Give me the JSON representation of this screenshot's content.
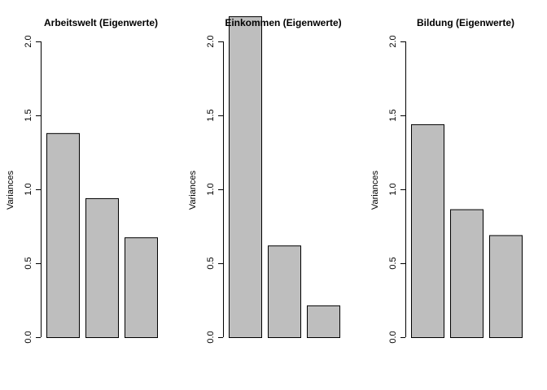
{
  "chart_data": [
    {
      "type": "bar",
      "title": "Arbeitswelt (Eigenwerte)",
      "ylabel": "Variances",
      "xlabel": "",
      "ylim": [
        0,
        2.0
      ],
      "yticks": [
        "0.0",
        "0.5",
        "1.0",
        "1.5",
        "2.0"
      ],
      "values": [
        1.38,
        0.94,
        0.675
      ],
      "bar_color": "#bebebe"
    },
    {
      "type": "bar",
      "title": "Einkommen (Eigenwerte)",
      "ylabel": "Variances",
      "xlabel": "",
      "ylim": [
        0,
        2.0
      ],
      "yticks": [
        "0.0",
        "0.5",
        "1.0",
        "1.5",
        "2.0"
      ],
      "values": [
        2.17,
        0.62,
        0.215
      ],
      "bar_color": "#bebebe"
    },
    {
      "type": "bar",
      "title": "Bildung (Eigenwerte)",
      "ylabel": "Variances",
      "xlabel": "",
      "ylim": [
        0,
        2.0
      ],
      "yticks": [
        "0.0",
        "0.5",
        "1.0",
        "1.5",
        "2.0"
      ],
      "values": [
        1.44,
        0.865,
        0.69
      ],
      "bar_color": "#bebebe"
    }
  ]
}
